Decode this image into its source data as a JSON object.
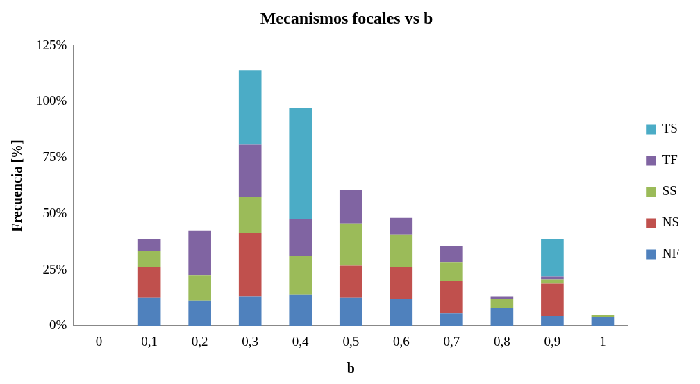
{
  "chart_data": {
    "type": "bar",
    "title": "Mecanismos focales vs b",
    "xlabel": "b",
    "ylabel": "Frecuencia [%]",
    "categories": [
      "0",
      "0,1",
      "0,2",
      "0,3",
      "0,4",
      "0,5",
      "0,6",
      "0,7",
      "0,8",
      "0,9",
      "1"
    ],
    "stacked": true,
    "series": [
      {
        "name": "NF",
        "color": "#4f81bd",
        "values": [
          0,
          12.5,
          11.3,
          13.2,
          13.8,
          12.5,
          11.9,
          5.6,
          8.1,
          4.4,
          3.8
        ]
      },
      {
        "name": "NS",
        "color": "#c0504d",
        "values": [
          0,
          13.8,
          0,
          28.1,
          0,
          14.4,
          14.4,
          14.4,
          0,
          14.4,
          0
        ]
      },
      {
        "name": "SS",
        "color": "#9bbb59",
        "values": [
          0,
          6.9,
          11.3,
          16.3,
          17.5,
          18.8,
          14.4,
          8.2,
          3.8,
          1.9,
          1.2
        ]
      },
      {
        "name": "TF",
        "color": "#8064a2",
        "values": [
          0,
          5.6,
          20,
          23.2,
          16.3,
          15.1,
          7.5,
          7.5,
          1.3,
          1.2,
          0
        ]
      },
      {
        "name": "TS",
        "color": "#4bacc6",
        "values": [
          0,
          0,
          0,
          33.2,
          49.5,
          0,
          0,
          0,
          0,
          16.9,
          0
        ]
      }
    ],
    "ylim": [
      0,
      125
    ],
    "yticks": [
      {
        "value": 0,
        "label": "0%"
      },
      {
        "value": 25,
        "label": "25%"
      },
      {
        "value": 50,
        "label": "50%"
      },
      {
        "value": 75,
        "label": "75%"
      },
      {
        "value": 100,
        "label": "100%"
      },
      {
        "value": 125,
        "label": "125%"
      }
    ],
    "grid": false,
    "legend": "right"
  }
}
